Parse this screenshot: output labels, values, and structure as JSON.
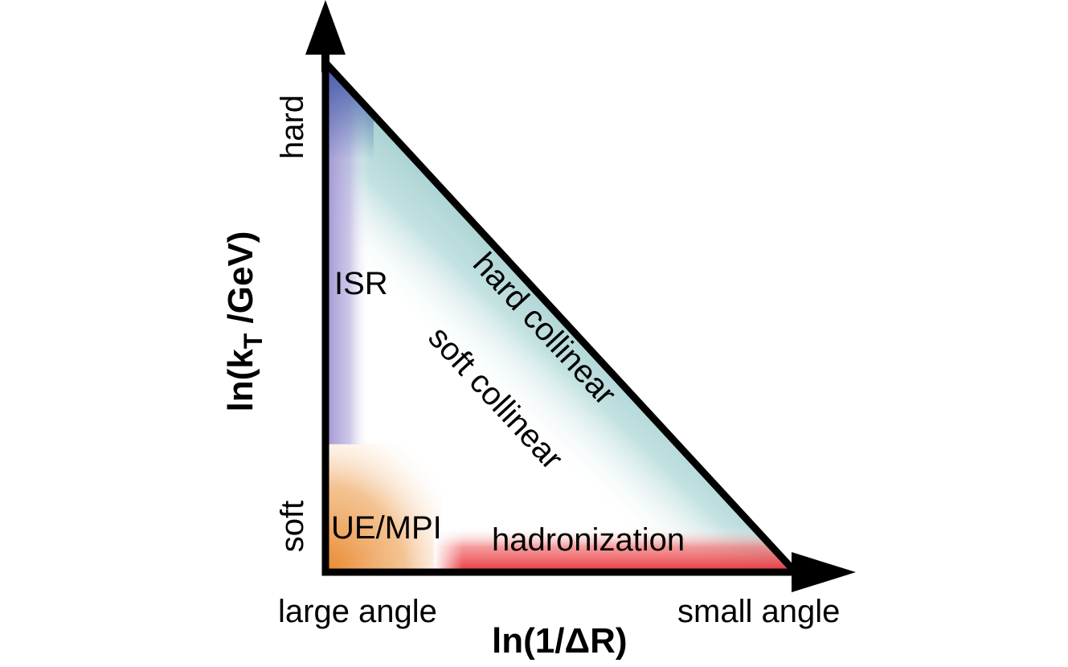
{
  "axes": {
    "x_label": "ln(1/ΔR)",
    "y_label_prefix": "ln(k",
    "y_label_subscript": "T",
    "y_label_suffix": " /GeV)",
    "x_low": "large angle",
    "x_high": "small angle",
    "y_low": "soft",
    "y_high": "hard"
  },
  "regions": {
    "isr": "ISR",
    "ue_mpi": "UE/MPI",
    "hadronization": "hadronization",
    "soft_collinear": "soft collinear",
    "hard_collinear": "hard collinear"
  },
  "colors": {
    "outline": "#000000",
    "isr": "#9b8fd0",
    "isr_top": "#3f57a8",
    "ue_mpi": "#e8862a",
    "hadronization": "#e8333b",
    "hard_collinear": "#a9d4d4"
  }
}
